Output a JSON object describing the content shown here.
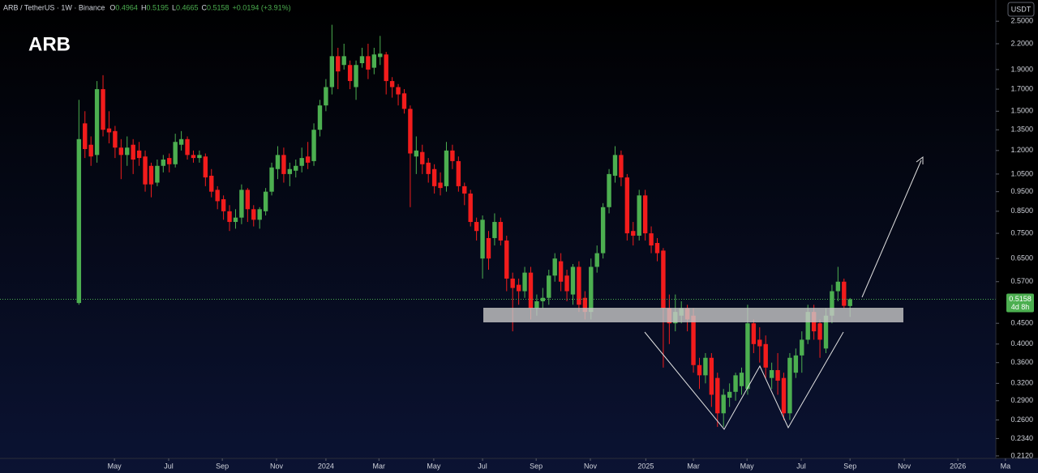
{
  "chart_data": {
    "type": "candlestick",
    "title": "ARB",
    "symbol_info": "ARB / TetherUS · 1W · Binance",
    "ohlc_legend": [
      {
        "label": "O",
        "value": "0.4964"
      },
      {
        "label": "H",
        "value": "0.5195"
      },
      {
        "label": "L",
        "value": "0.4665"
      },
      {
        "label": "C",
        "value": "0.5158"
      },
      {
        "label": "",
        "value": "+0.0194 (+3.91%)"
      }
    ],
    "currency": "USDT",
    "last_price": 0.5158,
    "countdown": "4d 8h",
    "log_scale": true,
    "grid": false,
    "up_color": "#4caf50",
    "down_color": "#f21c1c",
    "open": [
      0.505,
      1.4,
      1.24,
      1.17,
      1.7,
      1.36,
      1.34,
      1.22,
      1.17,
      1.24,
      1.2,
      1.16,
      1.1,
      1.0,
      1.1,
      1.15,
      1.11,
      1.24,
      1.28,
      1.17,
      1.15,
      1.16,
      1.04,
      0.96,
      0.91,
      0.85,
      0.8,
      0.82,
      0.96,
      0.86,
      0.81,
      0.85,
      0.95,
      1.08,
      1.17,
      1.05,
      1.07,
      1.1,
      1.16,
      1.13,
      1.35,
      1.55,
      1.72,
      2.05,
      1.95,
      1.95,
      1.72,
      1.97,
      2.05,
      1.92,
      2.04,
      2.07,
      1.78,
      1.72,
      1.66,
      1.52,
      1.16,
      1.19,
      1.12,
      1.08,
      1.0,
      0.98,
      1.2,
      1.13,
      0.98,
      0.94,
      0.8,
      0.65,
      0.73,
      0.73,
      0.8,
      0.72,
      0.58,
      0.56,
      0.54,
      0.6,
      0.49,
      0.51,
      0.52,
      0.59,
      0.64,
      0.59,
      0.53,
      0.62,
      0.52,
      0.48,
      0.62,
      0.67,
      0.87,
      1.04,
      1.17,
      1.03,
      0.76,
      0.74,
      0.93,
      0.75,
      0.71,
      0.68,
      0.49,
      0.45,
      0.47,
      0.49,
      0.47,
      0.355,
      0.335,
      0.37,
      0.33,
      0.27,
      0.295,
      0.305,
      0.315,
      0.31,
      0.45,
      0.41,
      0.4,
      0.33,
      0.345,
      0.33,
      0.27,
      0.34,
      0.375,
      0.41,
      0.48,
      0.45,
      0.39,
      0.47,
      0.54,
      0.57,
      0.4964
    ],
    "high": [
      1.6,
      1.5,
      1.3,
      1.78,
      1.84,
      1.5,
      1.38,
      1.28,
      1.3,
      1.28,
      1.26,
      1.2,
      1.12,
      1.14,
      1.17,
      1.18,
      1.32,
      1.34,
      1.3,
      1.2,
      1.2,
      1.18,
      1.08,
      0.98,
      0.93,
      0.88,
      0.86,
      0.99,
      0.97,
      0.88,
      0.87,
      0.97,
      1.12,
      1.23,
      1.22,
      1.12,
      1.14,
      1.22,
      1.26,
      1.4,
      1.6,
      1.8,
      2.45,
      2.15,
      2.2,
      2.0,
      2.0,
      2.15,
      2.2,
      2.15,
      2.3,
      2.1,
      1.82,
      1.75,
      1.7,
      1.55,
      1.3,
      1.24,
      1.15,
      1.11,
      1.06,
      1.26,
      1.24,
      1.16,
      1.0,
      0.96,
      0.82,
      0.83,
      0.76,
      0.84,
      0.82,
      0.74,
      0.6,
      0.58,
      0.62,
      0.62,
      0.53,
      0.55,
      0.61,
      0.67,
      0.67,
      0.61,
      0.63,
      0.64,
      0.54,
      0.65,
      0.7,
      0.89,
      1.08,
      1.23,
      1.2,
      1.05,
      0.8,
      0.96,
      0.96,
      0.78,
      0.73,
      0.69,
      0.53,
      0.53,
      0.51,
      0.5,
      0.49,
      0.37,
      0.38,
      0.38,
      0.34,
      0.31,
      0.32,
      0.34,
      0.35,
      0.5,
      0.46,
      0.44,
      0.42,
      0.36,
      0.38,
      0.34,
      0.38,
      0.39,
      0.43,
      0.5,
      0.5,
      0.46,
      0.49,
      0.56,
      0.62,
      0.58,
      0.5195
    ],
    "low": [
      0.5,
      1.15,
      1.1,
      1.12,
      1.3,
      1.25,
      1.15,
      1.02,
      1.1,
      1.05,
      1.1,
      0.95,
      0.92,
      0.98,
      1.06,
      1.06,
      1.09,
      1.2,
      1.14,
      1.12,
      1.12,
      0.98,
      0.92,
      0.86,
      0.81,
      0.76,
      0.77,
      0.79,
      0.8,
      0.78,
      0.77,
      0.83,
      0.93,
      1.02,
      1.0,
      0.98,
      1.03,
      1.06,
      1.08,
      1.1,
      1.3,
      1.5,
      1.65,
      1.7,
      1.9,
      1.7,
      1.6,
      1.92,
      1.8,
      1.85,
      1.95,
      1.65,
      1.62,
      1.55,
      1.48,
      0.87,
      1.05,
      1.05,
      1.0,
      0.94,
      0.93,
      0.95,
      1.08,
      0.95,
      0.88,
      0.78,
      0.72,
      0.58,
      0.61,
      0.7,
      0.7,
      0.54,
      0.43,
      0.5,
      0.52,
      0.46,
      0.47,
      0.49,
      0.5,
      0.57,
      0.54,
      0.51,
      0.5,
      0.48,
      0.46,
      0.46,
      0.6,
      0.65,
      0.84,
      1.0,
      0.98,
      0.72,
      0.7,
      0.72,
      0.72,
      0.67,
      0.64,
      0.35,
      0.4,
      0.43,
      0.45,
      0.43,
      0.34,
      0.31,
      0.32,
      0.28,
      0.25,
      0.25,
      0.28,
      0.29,
      0.3,
      0.3,
      0.38,
      0.36,
      0.33,
      0.31,
      0.3,
      0.26,
      0.26,
      0.33,
      0.34,
      0.4,
      0.41,
      0.37,
      0.38,
      0.45,
      0.51,
      0.49,
      0.4665
    ],
    "close": [
      1.28,
      1.21,
      1.16,
      1.7,
      1.35,
      1.33,
      1.22,
      1.17,
      1.22,
      1.14,
      1.15,
      0.99,
      0.99,
      1.1,
      1.14,
      1.11,
      1.26,
      1.28,
      1.17,
      1.15,
      1.17,
      1.03,
      0.95,
      0.9,
      0.85,
      0.8,
      0.82,
      0.96,
      0.86,
      0.81,
      0.86,
      0.95,
      1.09,
      1.17,
      1.05,
      1.08,
      1.1,
      1.15,
      1.12,
      1.35,
      1.55,
      1.72,
      2.05,
      1.88,
      2.05,
      1.78,
      1.95,
      2.05,
      1.9,
      2.07,
      2.08,
      1.78,
      1.72,
      1.65,
      1.52,
      1.18,
      1.2,
      1.11,
      1.05,
      0.98,
      0.97,
      1.2,
      1.13,
      0.98,
      0.94,
      0.8,
      0.76,
      0.81,
      0.65,
      0.8,
      0.72,
      0.58,
      0.55,
      0.54,
      0.6,
      0.49,
      0.51,
      0.52,
      0.59,
      0.65,
      0.57,
      0.54,
      0.62,
      0.5,
      0.48,
      0.62,
      0.67,
      0.87,
      1.05,
      1.17,
      1.03,
      0.75,
      0.74,
      0.93,
      0.75,
      0.7,
      0.67,
      0.49,
      0.45,
      0.48,
      0.49,
      0.46,
      0.355,
      0.335,
      0.37,
      0.3,
      0.27,
      0.3,
      0.305,
      0.335,
      0.34,
      0.45,
      0.4,
      0.395,
      0.35,
      0.345,
      0.325,
      0.27,
      0.37,
      0.375,
      0.41,
      0.48,
      0.43,
      0.41,
      0.47,
      0.54,
      0.57,
      0.497,
      0.5158
    ],
    "ylim": [
      0.209,
      2.82
    ],
    "yticks": [
      {
        "value": 2.5,
        "label": "2.5000"
      },
      {
        "value": 2.2,
        "label": "2.2000"
      },
      {
        "value": 1.9,
        "label": "1.9000"
      },
      {
        "value": 1.7,
        "label": "1.7000"
      },
      {
        "value": 1.5,
        "label": "1.5000"
      },
      {
        "value": 1.35,
        "label": "1.3500"
      },
      {
        "value": 1.2,
        "label": "1.2000"
      },
      {
        "value": 1.05,
        "label": "1.0500"
      },
      {
        "value": 0.95,
        "label": "0.9500"
      },
      {
        "value": 0.85,
        "label": "0.8500"
      },
      {
        "value": 0.75,
        "label": "0.7500"
      },
      {
        "value": 0.65,
        "label": "0.6500"
      },
      {
        "value": 0.57,
        "label": "0.5700"
      },
      {
        "value": 0.45,
        "label": "0.4500"
      },
      {
        "value": 0.4,
        "label": "0.4000"
      },
      {
        "value": 0.36,
        "label": "0.3600"
      },
      {
        "value": 0.32,
        "label": "0.3200"
      },
      {
        "value": 0.29,
        "label": "0.2900"
      },
      {
        "value": 0.26,
        "label": "0.2600"
      },
      {
        "value": 0.234,
        "label": "0.2340"
      },
      {
        "value": 0.212,
        "label": "0.2120"
      }
    ],
    "xlim": [
      -13.1,
      159.2
    ],
    "xticks": [
      {
        "value": 5.9,
        "label": "May"
      },
      {
        "value": 14.9,
        "label": "Jul"
      },
      {
        "value": 23.8,
        "label": "Sep"
      },
      {
        "value": 32.8,
        "label": "Nov"
      },
      {
        "value": 41.0,
        "label": "2024"
      },
      {
        "value": 49.8,
        "label": "Mar"
      },
      {
        "value": 58.9,
        "label": "May"
      },
      {
        "value": 67.0,
        "label": "Jul"
      },
      {
        "value": 75.9,
        "label": "Sep"
      },
      {
        "value": 84.9,
        "label": "Nov"
      },
      {
        "value": 94.1,
        "label": "2025"
      },
      {
        "value": 102.0,
        "label": "Mar"
      },
      {
        "value": 110.9,
        "label": "May"
      },
      {
        "value": 119.9,
        "label": "Jul"
      },
      {
        "value": 128.0,
        "label": "Sep"
      },
      {
        "value": 137.0,
        "label": "Nov"
      },
      {
        "value": 145.9,
        "label": "2026"
      },
      {
        "value": 153.8,
        "label": "Ma"
      }
    ]
  }
}
